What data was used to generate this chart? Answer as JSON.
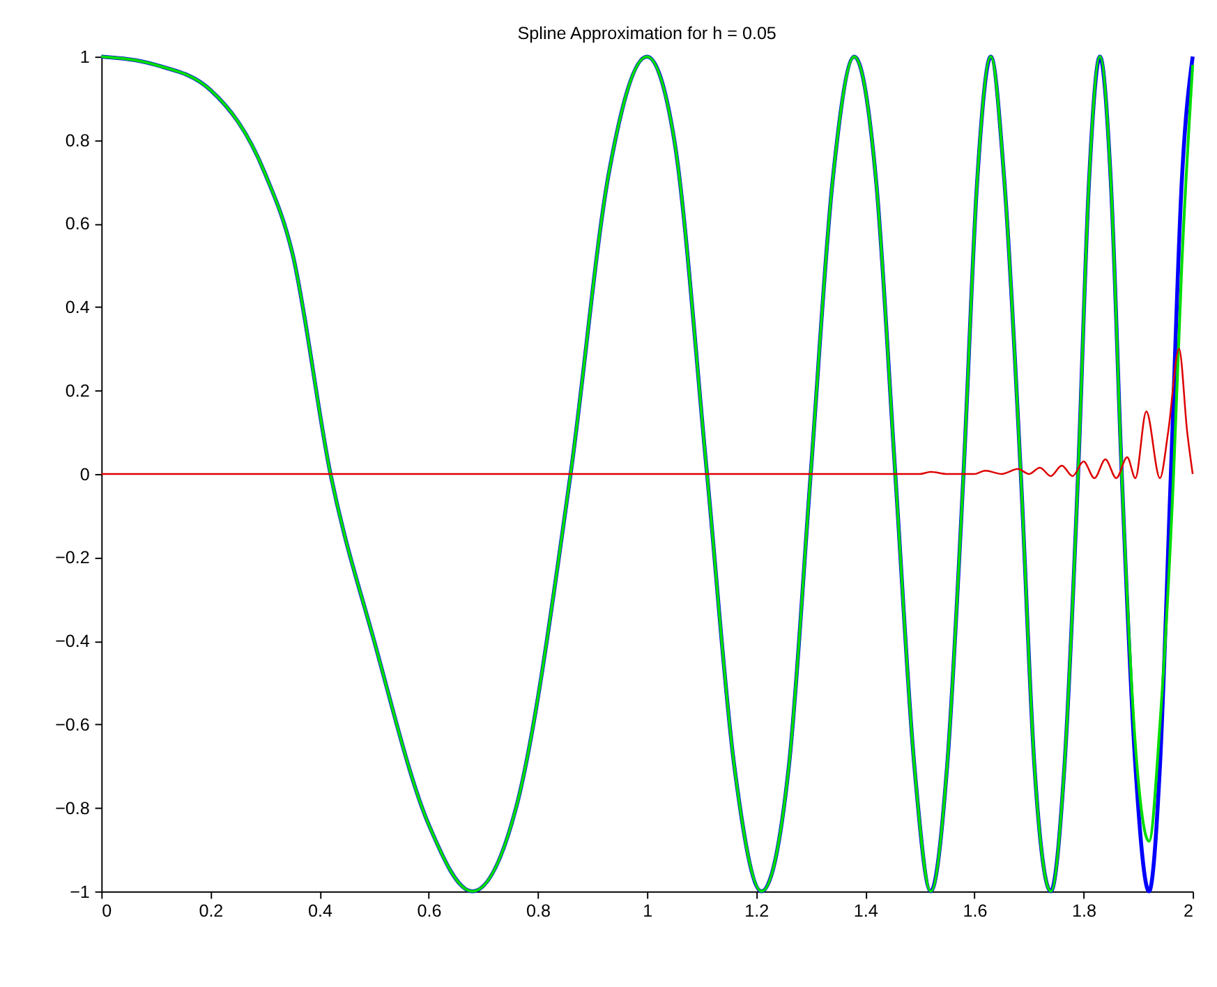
{
  "chart_data": {
    "type": "line",
    "title": "Spline Approximation for h = 0.05",
    "xlim": [
      0,
      2
    ],
    "xticks": [
      0,
      0.2,
      0.4,
      0.6,
      0.8,
      1,
      1.2,
      1.4,
      1.6,
      1.8,
      2
    ],
    "ylim": [
      -1,
      1
    ],
    "yticks": [
      -1,
      -0.8,
      -0.6,
      -0.4,
      -0.2,
      0,
      0.2,
      0.4,
      0.6,
      0.8,
      1
    ],
    "grid": false,
    "line_style": "solid",
    "marker": "none",
    "series": [
      {
        "color": "#0000ff",
        "x": [
          0,
          0.1,
          0.2,
          0.3,
          0.35,
          0.42,
          0.5,
          0.6,
          0.68,
          0.76,
          0.86,
          0.93,
          1.0,
          1.05,
          1.11,
          1.16,
          1.21,
          1.26,
          1.3,
          1.34,
          1.38,
          1.42,
          1.455,
          1.49,
          1.52,
          1.55,
          1.58,
          1.605,
          1.63,
          1.655,
          1.685,
          1.71,
          1.74,
          1.765,
          1.79,
          1.81,
          1.83,
          1.85,
          1.87,
          1.895,
          1.92,
          1.94,
          1.96,
          1.98,
          2.0
        ],
        "values": [
          1,
          0.98,
          0.92,
          0.72,
          0.53,
          0,
          -0.4,
          -0.84,
          -1,
          -0.8,
          0,
          0.72,
          1,
          0.8,
          0,
          -0.7,
          -1,
          -0.7,
          0,
          0.7,
          1,
          0.7,
          0,
          -0.7,
          -1,
          -0.7,
          0,
          0.7,
          1,
          0.7,
          0,
          -0.7,
          -1,
          -0.7,
          0,
          0.7,
          1,
          0.7,
          0,
          -0.7,
          -1,
          -0.7,
          0,
          0.7,
          1
        ]
      },
      {
        "color": "#00dd00",
        "x": [
          0,
          0.1,
          0.2,
          0.3,
          0.35,
          0.42,
          0.5,
          0.6,
          0.68,
          0.76,
          0.86,
          0.93,
          1.0,
          1.05,
          1.11,
          1.16,
          1.21,
          1.26,
          1.3,
          1.34,
          1.38,
          1.42,
          1.455,
          1.49,
          1.52,
          1.55,
          1.58,
          1.605,
          1.63,
          1.655,
          1.685,
          1.71,
          1.74,
          1.765,
          1.79,
          1.81,
          1.83,
          1.85,
          1.87,
          1.895,
          1.92,
          1.94,
          1.965,
          1.98,
          2.0
        ],
        "values": [
          1,
          0.98,
          0.92,
          0.72,
          0.53,
          0,
          -0.4,
          -0.84,
          -1,
          -0.8,
          0,
          0.72,
          1,
          0.8,
          0,
          -0.7,
          -1,
          -0.7,
          0,
          0.7,
          1,
          0.7,
          0,
          -0.7,
          -1,
          -0.7,
          0,
          0.7,
          1,
          0.7,
          0,
          -0.7,
          -1,
          -0.7,
          0,
          0.7,
          1,
          0.7,
          0,
          -0.65,
          -0.88,
          -0.6,
          0,
          0.5,
          0.98
        ]
      },
      {
        "color": "#dd0000",
        "x": [
          0,
          0.5,
          1.0,
          1.5,
          1.52,
          1.55,
          1.6,
          1.62,
          1.65,
          1.68,
          1.7,
          1.72,
          1.74,
          1.76,
          1.78,
          1.8,
          1.82,
          1.84,
          1.86,
          1.88,
          1.895,
          1.915,
          1.94,
          1.955,
          1.975,
          1.99,
          2.0
        ],
        "values": [
          0,
          0,
          0,
          0,
          0.005,
          0,
          0,
          0.008,
          0,
          0.012,
          0,
          0.015,
          -0.005,
          0.02,
          -0.005,
          0.03,
          -0.01,
          0.035,
          -0.01,
          0.04,
          -0.01,
          0.15,
          -0.01,
          0.1,
          0.3,
          0.1,
          0
        ]
      }
    ]
  }
}
